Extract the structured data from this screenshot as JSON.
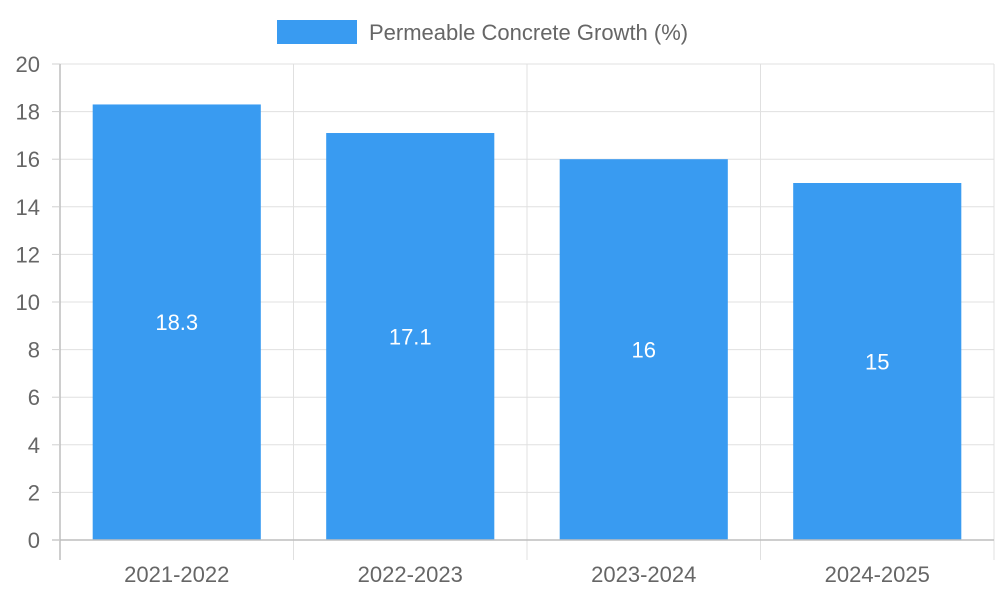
{
  "chart_data": {
    "type": "bar",
    "categories": [
      "2021-2022",
      "2022-2023",
      "2023-2024",
      "2024-2025"
    ],
    "series": [
      {
        "name": "Permeable Concrete Growth (%)",
        "values": [
          18.3,
          17.1,
          16,
          15
        ],
        "color": "#399BF1"
      }
    ],
    "data_labels": [
      "18.3",
      "17.1",
      "16",
      "15"
    ],
    "y_ticks": [
      "0",
      "2",
      "4",
      "6",
      "8",
      "10",
      "12",
      "14",
      "16",
      "18",
      "20"
    ],
    "ylim": [
      0,
      20
    ],
    "grid": true,
    "legend_position": "top-center",
    "title": "",
    "xlabel": "",
    "ylabel": ""
  }
}
